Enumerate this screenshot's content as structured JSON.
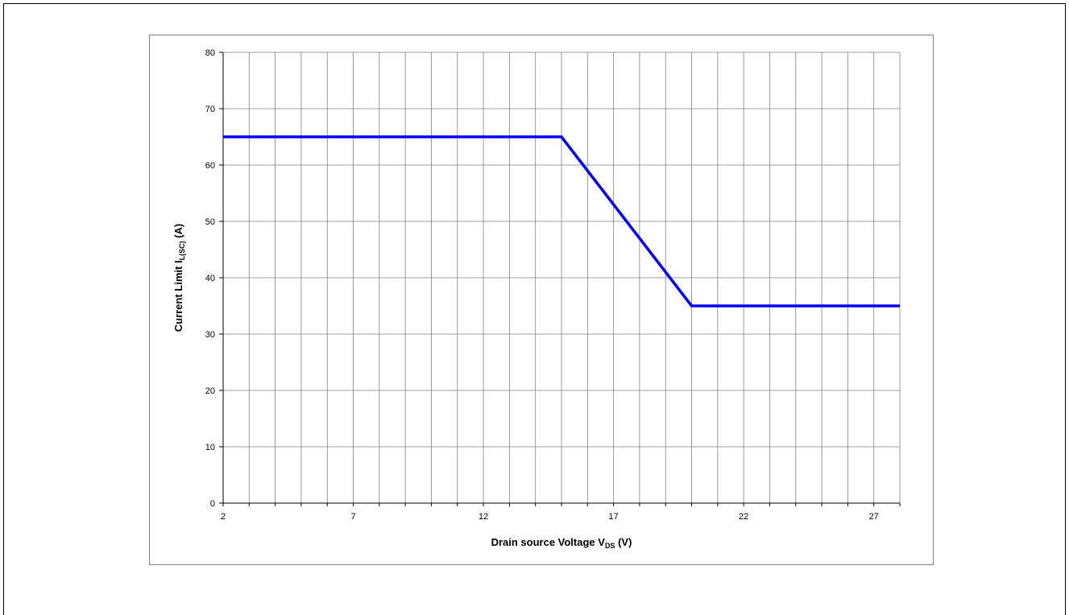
{
  "chart_data": {
    "type": "line",
    "title": "",
    "xlabel": {
      "main": "Drain source Voltage V",
      "sub": "DS",
      "suffix": " (V)"
    },
    "ylabel": {
      "main": "Current Limit I",
      "sub": "L(SC)",
      "suffix": " (A)"
    },
    "xlim": [
      2,
      28
    ],
    "ylim": [
      0,
      80
    ],
    "x_ticks": [
      2,
      7,
      12,
      17,
      22,
      27
    ],
    "x_minor_step": 1,
    "y_ticks": [
      0,
      10,
      20,
      30,
      40,
      50,
      60,
      70,
      80
    ],
    "grid": true,
    "legend": "none",
    "series": [
      {
        "color": "#0000ff",
        "x": [
          2,
          15,
          20,
          28
        ],
        "y": [
          65,
          65,
          35,
          35
        ]
      }
    ]
  }
}
